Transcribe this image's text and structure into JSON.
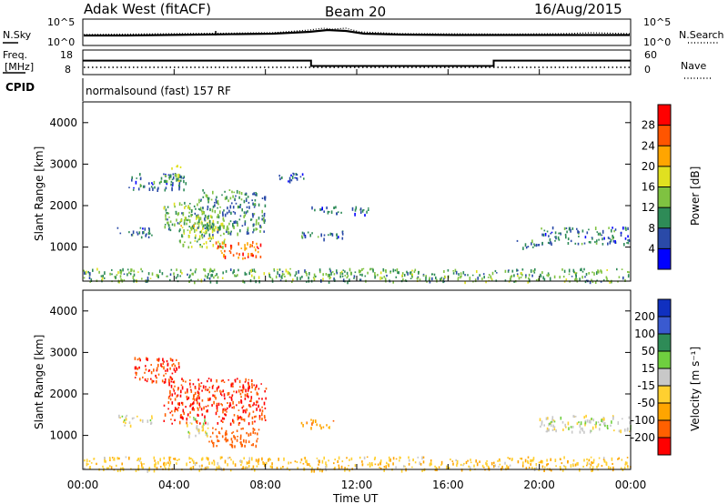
{
  "header": {
    "radar": "Adak West (fitACF)",
    "beam": "Beam 20",
    "date": "16/Aug/2015"
  },
  "top_panels": {
    "nsky_label": "N.Sky",
    "nsky_ticks": [
      "10^5",
      "10^0"
    ],
    "nsearch_label": "N.Search",
    "nsearch_ticks": [
      "10^5",
      "10^0"
    ],
    "freq_label_line1": "Freq.",
    "freq_label_line2": "[MHz]",
    "freq_ticks": [
      "18",
      "8"
    ],
    "nave_label": "Nave",
    "nave_ticks": [
      "60",
      "0"
    ],
    "cpid_label": "CPID",
    "cpid_text": "normalsound (fast) 157 RF"
  },
  "power_colorbar": {
    "title": "Power [dB]",
    "ticks": [
      "28",
      "24",
      "20",
      "16",
      "12",
      "8",
      "4"
    ],
    "colors": [
      "#0000ff",
      "#2a4aa8",
      "#2e8b57",
      "#7fc241",
      "#e0e020",
      "#ffa500",
      "#ff5500",
      "#ff0000"
    ]
  },
  "velocity_colorbar": {
    "title": "Velocity [m s⁻¹]",
    "ticks": [
      "200",
      "100",
      "50",
      "15",
      "-15",
      "-50",
      "-100",
      "-200"
    ],
    "colors": [
      "#1030c0",
      "#3a5ad0",
      "#2e8b57",
      "#6fcf3f",
      "#c8c8c8",
      "#ffd030",
      "#ffa500",
      "#ff6000",
      "#ff0000"
    ]
  },
  "time_axis": {
    "label": "Time UT",
    "ticks": [
      "00:00",
      "04:00",
      "08:00",
      "12:00",
      "16:00",
      "20:00",
      "00:00"
    ]
  },
  "range_axis": {
    "label": "Slant Range [km]",
    "ticks": [
      "4000",
      "3000",
      "2000",
      "1000"
    ]
  },
  "chart_data": [
    {
      "type": "line",
      "title": "",
      "xlabel": "Time UT",
      "ylabel": "Freq. [MHz]",
      "xlim": [
        0,
        24
      ],
      "ylim": [
        8,
        18
      ],
      "series": [
        {
          "x": [
            0,
            10,
            10,
            18,
            18,
            24
          ],
          "values": [
            13.7,
            13.7,
            11.5,
            11.5,
            13.7,
            13.7
          ]
        }
      ]
    },
    {
      "type": "heatmap",
      "title": "",
      "xlabel": "Time UT",
      "ylabel": "Slant Range [km]",
      "colorbar": "Power [dB]",
      "xlim": [
        0,
        24
      ],
      "ylim": [
        180,
        4500
      ],
      "clim": [
        0,
        32
      ],
      "regions": [
        {
          "t": [
            1.5,
            3.0
          ],
          "r": [
            1250,
            1500
          ],
          "value": 8
        },
        {
          "t": [
            2.0,
            4.5
          ],
          "r": [
            2400,
            2800
          ],
          "value": 8
        },
        {
          "t": [
            3.5,
            4.3
          ],
          "r": [
            2600,
            3000
          ],
          "value": 14
        },
        {
          "t": [
            3.5,
            5.5
          ],
          "r": [
            1400,
            2100
          ],
          "value": 12
        },
        {
          "t": [
            4.2,
            6.2
          ],
          "r": [
            1000,
            1800
          ],
          "value": 16
        },
        {
          "t": [
            5.8,
            7.8
          ],
          "r": [
            750,
            1150
          ],
          "value": 25
        },
        {
          "t": [
            5.0,
            8.0
          ],
          "r": [
            1300,
            2400
          ],
          "value": 10
        },
        {
          "t": [
            9.5,
            11.5
          ],
          "r": [
            1200,
            1400
          ],
          "value": 8
        },
        {
          "t": [
            10.0,
            12.5
          ],
          "r": [
            1800,
            2000
          ],
          "value": 8
        },
        {
          "t": [
            8.5,
            10.0
          ],
          "r": [
            2600,
            2800
          ],
          "value": 8
        },
        {
          "t": [
            20.0,
            24.0
          ],
          "r": [
            1100,
            1500
          ],
          "value": 8
        },
        {
          "t": [
            19.0,
            20.0
          ],
          "r": [
            1000,
            1200
          ],
          "value": 8
        },
        {
          "t": [
            0.0,
            24.0
          ],
          "r": [
            180,
            500
          ],
          "value": 12
        }
      ]
    },
    {
      "type": "heatmap",
      "title": "",
      "xlabel": "Time UT",
      "ylabel": "Slant Range [km]",
      "colorbar": "Velocity [m s⁻¹]",
      "xlim": [
        0,
        24
      ],
      "ylim": [
        180,
        4500
      ],
      "regions": [
        {
          "t": [
            2.2,
            4.2
          ],
          "r": [
            2300,
            2900
          ],
          "value": -200
        },
        {
          "t": [
            3.5,
            8.0
          ],
          "r": [
            1300,
            2400
          ],
          "value": -200
        },
        {
          "t": [
            5.5,
            7.8
          ],
          "r": [
            750,
            1200
          ],
          "value": -150
        },
        {
          "t": [
            1.5,
            3.0
          ],
          "r": [
            1250,
            1500
          ],
          "value": 0
        },
        {
          "t": [
            4.5,
            5.5
          ],
          "r": [
            1000,
            1500
          ],
          "value": 0
        },
        {
          "t": [
            9.5,
            11.0
          ],
          "r": [
            1200,
            1400
          ],
          "value": -75
        },
        {
          "t": [
            20.0,
            24.0
          ],
          "r": [
            1100,
            1500
          ],
          "value": 0
        },
        {
          "t": [
            0.0,
            24.0
          ],
          "r": [
            180,
            500
          ],
          "value": -40
        }
      ]
    }
  ]
}
